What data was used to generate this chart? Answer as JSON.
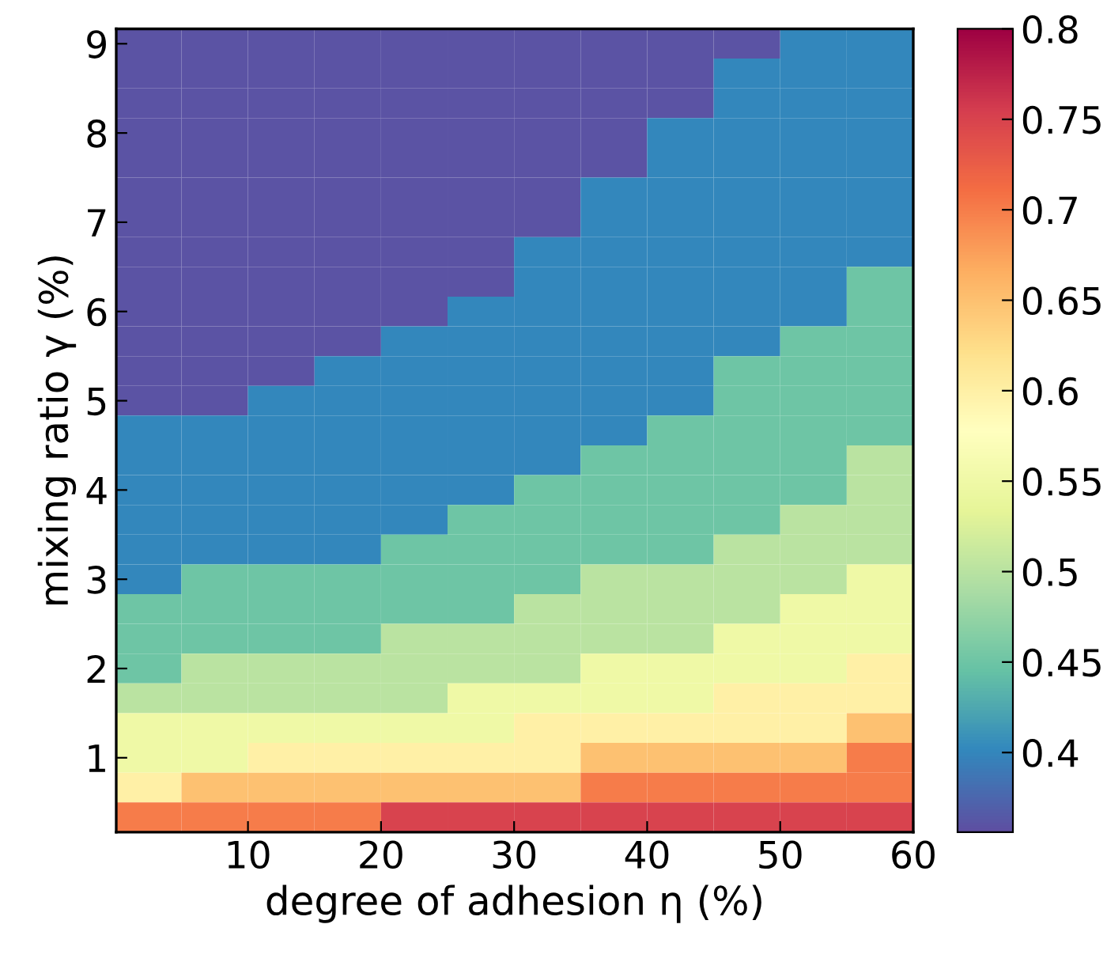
{
  "chart_data": {
    "type": "heatmap",
    "xlabel": "degree of adhesion η (%)",
    "ylabel": "mixing ratio γ (%)",
    "x": [
      2.5,
      7.5,
      12.5,
      17.5,
      22.5,
      27.5,
      32.5,
      37.5,
      42.5,
      47.5,
      52.5,
      57.5
    ],
    "y_categories": [
      "9",
      null,
      null,
      "8",
      null,
      null,
      "7",
      null,
      null,
      "6",
      null,
      null,
      "5",
      null,
      null,
      "4",
      null,
      null,
      "3",
      null,
      null,
      "2",
      null,
      null,
      "1",
      null,
      null
    ],
    "cells": [
      [
        0.36,
        0.36,
        0.36,
        0.36,
        0.36,
        0.36,
        0.36,
        0.36,
        0.36,
        0.36,
        0.4,
        0.4
      ],
      [
        0.36,
        0.36,
        0.36,
        0.36,
        0.36,
        0.36,
        0.36,
        0.36,
        0.36,
        0.4,
        0.4,
        0.4
      ],
      [
        0.36,
        0.36,
        0.36,
        0.36,
        0.36,
        0.36,
        0.36,
        0.36,
        0.36,
        0.4,
        0.4,
        0.4
      ],
      [
        0.36,
        0.36,
        0.36,
        0.36,
        0.36,
        0.36,
        0.36,
        0.36,
        0.4,
        0.4,
        0.4,
        0.4
      ],
      [
        0.36,
        0.36,
        0.36,
        0.36,
        0.36,
        0.36,
        0.36,
        0.36,
        0.4,
        0.4,
        0.4,
        0.4
      ],
      [
        0.36,
        0.36,
        0.36,
        0.36,
        0.36,
        0.36,
        0.36,
        0.4,
        0.4,
        0.4,
        0.4,
        0.4
      ],
      [
        0.36,
        0.36,
        0.36,
        0.36,
        0.36,
        0.36,
        0.36,
        0.4,
        0.4,
        0.4,
        0.4,
        0.4
      ],
      [
        0.36,
        0.36,
        0.36,
        0.36,
        0.36,
        0.36,
        0.4,
        0.4,
        0.4,
        0.4,
        0.4,
        0.4
      ],
      [
        0.36,
        0.36,
        0.36,
        0.36,
        0.36,
        0.36,
        0.4,
        0.4,
        0.4,
        0.4,
        0.4,
        0.45
      ],
      [
        0.36,
        0.36,
        0.36,
        0.36,
        0.36,
        0.4,
        0.4,
        0.4,
        0.4,
        0.4,
        0.4,
        0.45
      ],
      [
        0.36,
        0.36,
        0.36,
        0.36,
        0.4,
        0.4,
        0.4,
        0.4,
        0.4,
        0.4,
        0.45,
        0.45
      ],
      [
        0.36,
        0.36,
        0.36,
        0.4,
        0.4,
        0.4,
        0.4,
        0.4,
        0.4,
        0.45,
        0.45,
        0.45
      ],
      [
        0.36,
        0.36,
        0.4,
        0.4,
        0.4,
        0.4,
        0.4,
        0.4,
        0.4,
        0.45,
        0.45,
        0.45
      ],
      [
        0.4,
        0.4,
        0.4,
        0.4,
        0.4,
        0.4,
        0.4,
        0.4,
        0.45,
        0.45,
        0.45,
        0.45
      ],
      [
        0.4,
        0.4,
        0.4,
        0.4,
        0.4,
        0.4,
        0.4,
        0.45,
        0.45,
        0.45,
        0.45,
        0.5
      ],
      [
        0.4,
        0.4,
        0.4,
        0.4,
        0.4,
        0.4,
        0.45,
        0.45,
        0.45,
        0.45,
        0.45,
        0.5
      ],
      [
        0.4,
        0.4,
        0.4,
        0.4,
        0.4,
        0.45,
        0.45,
        0.45,
        0.45,
        0.45,
        0.5,
        0.5
      ],
      [
        0.4,
        0.4,
        0.4,
        0.4,
        0.45,
        0.45,
        0.45,
        0.45,
        0.45,
        0.5,
        0.5,
        0.5
      ],
      [
        0.4,
        0.45,
        0.45,
        0.45,
        0.45,
        0.45,
        0.45,
        0.5,
        0.5,
        0.5,
        0.5,
        0.55
      ],
      [
        0.45,
        0.45,
        0.45,
        0.45,
        0.45,
        0.45,
        0.5,
        0.5,
        0.5,
        0.5,
        0.55,
        0.55
      ],
      [
        0.45,
        0.45,
        0.45,
        0.45,
        0.5,
        0.5,
        0.5,
        0.5,
        0.5,
        0.55,
        0.55,
        0.55
      ],
      [
        0.45,
        0.5,
        0.5,
        0.5,
        0.5,
        0.5,
        0.5,
        0.55,
        0.55,
        0.55,
        0.55,
        0.6
      ],
      [
        0.5,
        0.5,
        0.5,
        0.5,
        0.5,
        0.55,
        0.55,
        0.55,
        0.55,
        0.6,
        0.6,
        0.6
      ],
      [
        0.55,
        0.55,
        0.55,
        0.55,
        0.55,
        0.55,
        0.6,
        0.6,
        0.6,
        0.6,
        0.6,
        0.65
      ],
      [
        0.55,
        0.55,
        0.6,
        0.6,
        0.6,
        0.6,
        0.6,
        0.65,
        0.65,
        0.65,
        0.65,
        0.7
      ],
      [
        0.6,
        0.65,
        0.65,
        0.65,
        0.65,
        0.65,
        0.65,
        0.7,
        0.7,
        0.7,
        0.7,
        0.7
      ],
      [
        0.7,
        0.7,
        0.7,
        0.7,
        0.75,
        0.75,
        0.75,
        0.75,
        0.75,
        0.75,
        0.75,
        0.75
      ]
    ],
    "xlim": [
      0.1,
      60
    ],
    "xticks": [
      10,
      20,
      30,
      40,
      50,
      60
    ],
    "clim": [
      0.356,
      0.8
    ],
    "cticks": [
      0.4,
      0.45,
      0.5,
      0.55,
      0.6,
      0.65,
      0.7,
      0.75,
      0.8
    ]
  }
}
